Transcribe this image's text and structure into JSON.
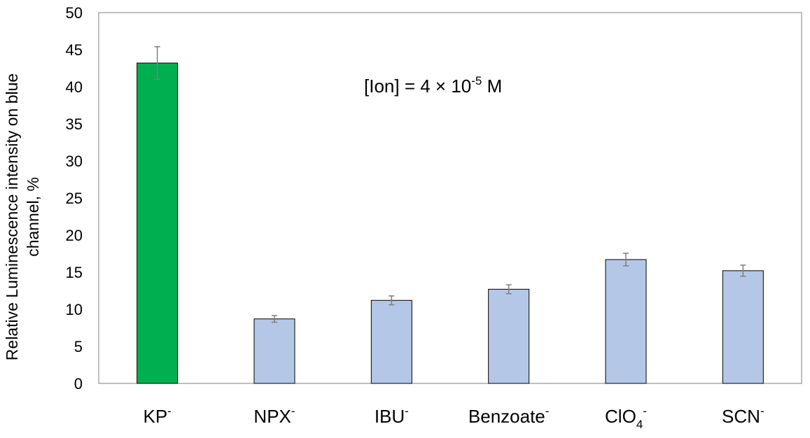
{
  "chart_data": {
    "type": "bar",
    "ylabel_line1": "Relative Luminescence intensity on blue",
    "ylabel_line2": "channel, %",
    "annotation": {
      "main": "[Ion] = 4 × 10",
      "exponent": "-5",
      "unit": " M"
    },
    "ylim": [
      0,
      50
    ],
    "yticks": [
      0,
      5,
      10,
      15,
      20,
      25,
      30,
      35,
      40,
      45,
      50
    ],
    "grid": false,
    "categories": [
      {
        "base": "KP",
        "sub": "",
        "sup": "-"
      },
      {
        "base": "NPX",
        "sub": "",
        "sup": "-"
      },
      {
        "base": "IBU",
        "sub": "",
        "sup": "-"
      },
      {
        "base": "Benzoate",
        "sub": "",
        "sup": "-"
      },
      {
        "base": "ClO",
        "sub": "4",
        "sup": "-"
      },
      {
        "base": "SCN",
        "sub": "",
        "sup": "-"
      }
    ],
    "values": [
      43.2,
      8.7,
      11.2,
      12.7,
      16.7,
      15.2
    ],
    "errors": [
      2.2,
      0.45,
      0.6,
      0.6,
      0.85,
      0.75
    ],
    "colors": [
      "#00b050",
      "#b4c7e7",
      "#b4c7e7",
      "#b4c7e7",
      "#b4c7e7",
      "#b4c7e7"
    ]
  }
}
